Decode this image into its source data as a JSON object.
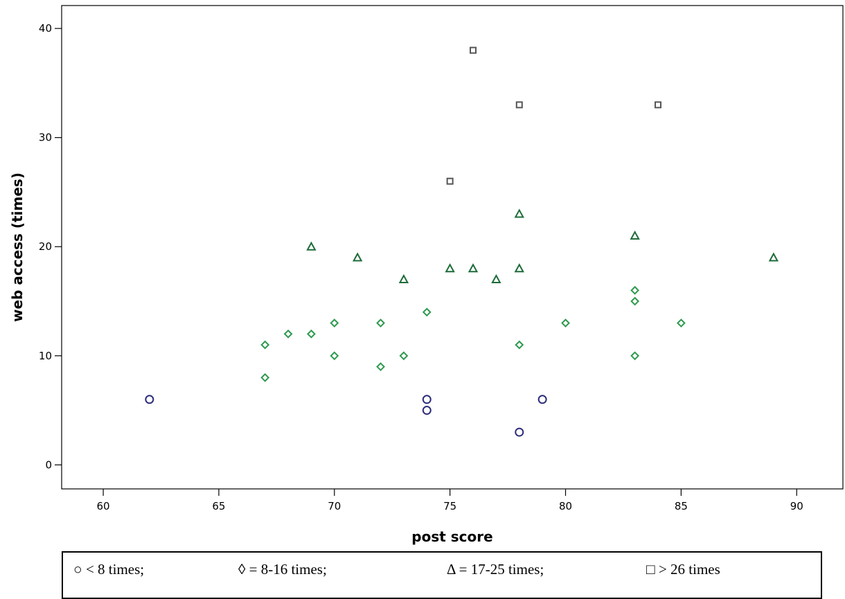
{
  "chart_data": {
    "type": "scatter",
    "title": "",
    "xlabel": "post score",
    "ylabel": "web access (times)",
    "xlim": [
      58.2,
      92
    ],
    "ylim": [
      -2.2,
      42.1
    ],
    "xticks": [
      60,
      65,
      70,
      75,
      80,
      85,
      90
    ],
    "yticks": [
      0,
      10,
      20,
      30,
      40
    ],
    "grid": false,
    "legend_position": "bottom",
    "series": [
      {
        "name": "< 8 times;",
        "marker": "circle",
        "color": "#2b2b7a",
        "points": [
          [
            62,
            6
          ],
          [
            74,
            6
          ],
          [
            74,
            5
          ],
          [
            78,
            3
          ],
          [
            79,
            6
          ]
        ]
      },
      {
        "name": "= 8-16 times;",
        "marker": "diamond",
        "color": "#2e9a4e",
        "points": [
          [
            67,
            11
          ],
          [
            67,
            8
          ],
          [
            68,
            12
          ],
          [
            69,
            12
          ],
          [
            70,
            13
          ],
          [
            70,
            10
          ],
          [
            72,
            13
          ],
          [
            72,
            9
          ],
          [
            73,
            10
          ],
          [
            74,
            14
          ],
          [
            78,
            11
          ],
          [
            80,
            13
          ],
          [
            83,
            16
          ],
          [
            83,
            15
          ],
          [
            83,
            10
          ],
          [
            85,
            13
          ]
        ]
      },
      {
        "name": "= 17-25 times;",
        "marker": "triangle",
        "color": "#1e6b3a",
        "points": [
          [
            69,
            20
          ],
          [
            71,
            19
          ],
          [
            73,
            17
          ],
          [
            75,
            18
          ],
          [
            76,
            18
          ],
          [
            77,
            17
          ],
          [
            78,
            23
          ],
          [
            78,
            18
          ],
          [
            83,
            21
          ],
          [
            89,
            19
          ]
        ]
      },
      {
        "name": "> 26 times",
        "marker": "square",
        "color": "#555555",
        "points": [
          [
            75,
            26
          ],
          [
            76,
            38
          ],
          [
            78,
            33
          ],
          [
            84,
            33
          ]
        ]
      }
    ]
  },
  "legend": {
    "items": [
      {
        "symbol": "○",
        "label": "< 8 times;"
      },
      {
        "symbol": "◊",
        "label": "= 8-16 times;"
      },
      {
        "symbol": "Δ",
        "label": "= 17-25 times;"
      },
      {
        "symbol": "□",
        "label": "> 26 times"
      }
    ]
  }
}
